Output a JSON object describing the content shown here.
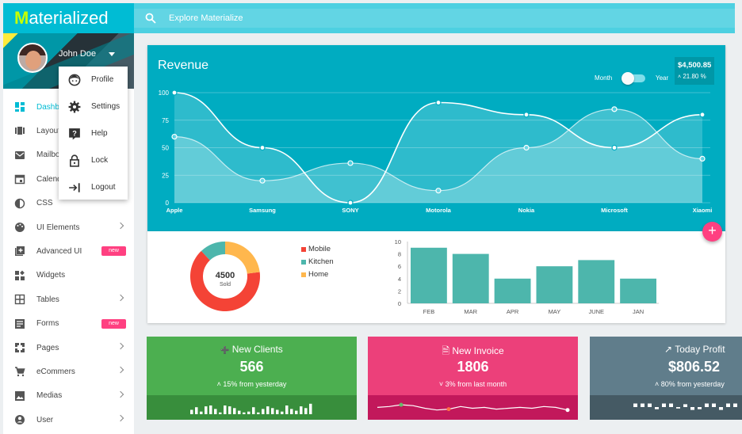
{
  "app": {
    "logo_letter": "M",
    "logo_rest": "aterialized"
  },
  "search": {
    "placeholder": "Explore Materialize"
  },
  "user": {
    "name": "John Doe"
  },
  "user_menu": [
    {
      "label": "Profile",
      "icon": "face-icon"
    },
    {
      "label": "Settings",
      "icon": "gear-icon"
    },
    {
      "label": "Help",
      "icon": "help-icon"
    },
    {
      "label": "Lock",
      "icon": "lock-icon"
    },
    {
      "label": "Logout",
      "icon": "logout-icon"
    }
  ],
  "sidebar": {
    "items": [
      {
        "label": "Dashboard",
        "icon": "dashboard-icon",
        "active": true
      },
      {
        "label": "Layouts",
        "icon": "layouts-icon"
      },
      {
        "label": "Mailbox",
        "icon": "mail-icon"
      },
      {
        "label": "Calendar",
        "icon": "calendar-icon"
      },
      {
        "label": "CSS",
        "icon": "contrast-icon"
      },
      {
        "label": "UI Elements",
        "icon": "palette-icon",
        "arrow": true
      },
      {
        "label": "Advanced UI",
        "icon": "add-box-icon",
        "badge": "new"
      },
      {
        "label": "Widgets",
        "icon": "widgets-icon"
      },
      {
        "label": "Tables",
        "icon": "table-icon",
        "arrow": true
      },
      {
        "label": "Forms",
        "icon": "forms-icon",
        "badge": "new"
      },
      {
        "label": "Pages",
        "icon": "pages-icon",
        "arrow": true
      },
      {
        "label": "eCommers",
        "icon": "cart-icon",
        "arrow": true
      },
      {
        "label": "Medias",
        "icon": "image-icon",
        "arrow": true
      },
      {
        "label": "User",
        "icon": "user-icon",
        "arrow": true
      }
    ]
  },
  "revenue": {
    "title": "Revenue",
    "toggle_left": "Month",
    "toggle_right": "Year",
    "amount": "$4,500.85",
    "change": "21.80 %"
  },
  "chart_data": [
    {
      "type": "line",
      "x": [
        "Apple",
        "Samsung",
        "SONY",
        "Motorola",
        "Nokia",
        "Microsoft",
        "Xiaomi"
      ],
      "ylim": [
        0,
        100
      ],
      "yticks": [
        0,
        25,
        50,
        75,
        100
      ],
      "series": [
        {
          "values": [
            100,
            50,
            0,
            91,
            80,
            50,
            80
          ]
        },
        {
          "values": [
            60,
            20,
            36,
            11,
            50,
            85,
            40
          ]
        }
      ]
    },
    {
      "type": "pie",
      "labels": [
        "Mobile",
        "Kitchen",
        "Home"
      ],
      "values": [
        65,
        12,
        23
      ],
      "colors": [
        "#f44336",
        "#4db6ac",
        "#ffb74d"
      ],
      "center_value": "4500",
      "center_label": "Sold"
    },
    {
      "type": "bar",
      "categories": [
        "FEB",
        "MAR",
        "APR",
        "MAY",
        "JUNE",
        "JAN"
      ],
      "values": [
        9,
        8,
        4,
        6,
        7,
        4
      ],
      "ylim": [
        0,
        10
      ],
      "yticks": [
        0,
        2,
        4,
        6,
        8,
        10
      ],
      "color": "#4db6ac"
    }
  ],
  "stats": [
    {
      "title": "New Clients",
      "value": "566",
      "sub": "15% from yesterday",
      "icon": "add-user-icon",
      "trend": "up",
      "spark": [
        5,
        8,
        3,
        9,
        10,
        6,
        2,
        10,
        9,
        7,
        4,
        2,
        3,
        8,
        2,
        6,
        9,
        7,
        5,
        3,
        10,
        6,
        4,
        9,
        7,
        12
      ]
    },
    {
      "title": "New Invoice",
      "value": "1806",
      "sub": "3% from last month",
      "icon": "file-icon",
      "trend": "down",
      "spark": [
        6,
        7,
        9,
        8,
        5,
        3,
        4,
        7,
        5,
        6,
        4,
        5,
        6,
        5,
        7,
        6,
        3
      ]
    },
    {
      "title": "Today Profit",
      "value": "$806.52",
      "sub": "80% from yesterday",
      "icon": "trending-up-icon",
      "trend": "up",
      "spark": [
        5,
        5,
        5,
        -3,
        5,
        5,
        -2,
        4,
        -4,
        -3,
        5,
        5,
        -4,
        5,
        5
      ]
    }
  ],
  "colors": {
    "accent": "#00bcd4",
    "revenue_bg": "#00acc1",
    "badge": "#ff4081",
    "green": "#4caf50",
    "pink": "#ec407a",
    "grey": "#607d8b"
  }
}
